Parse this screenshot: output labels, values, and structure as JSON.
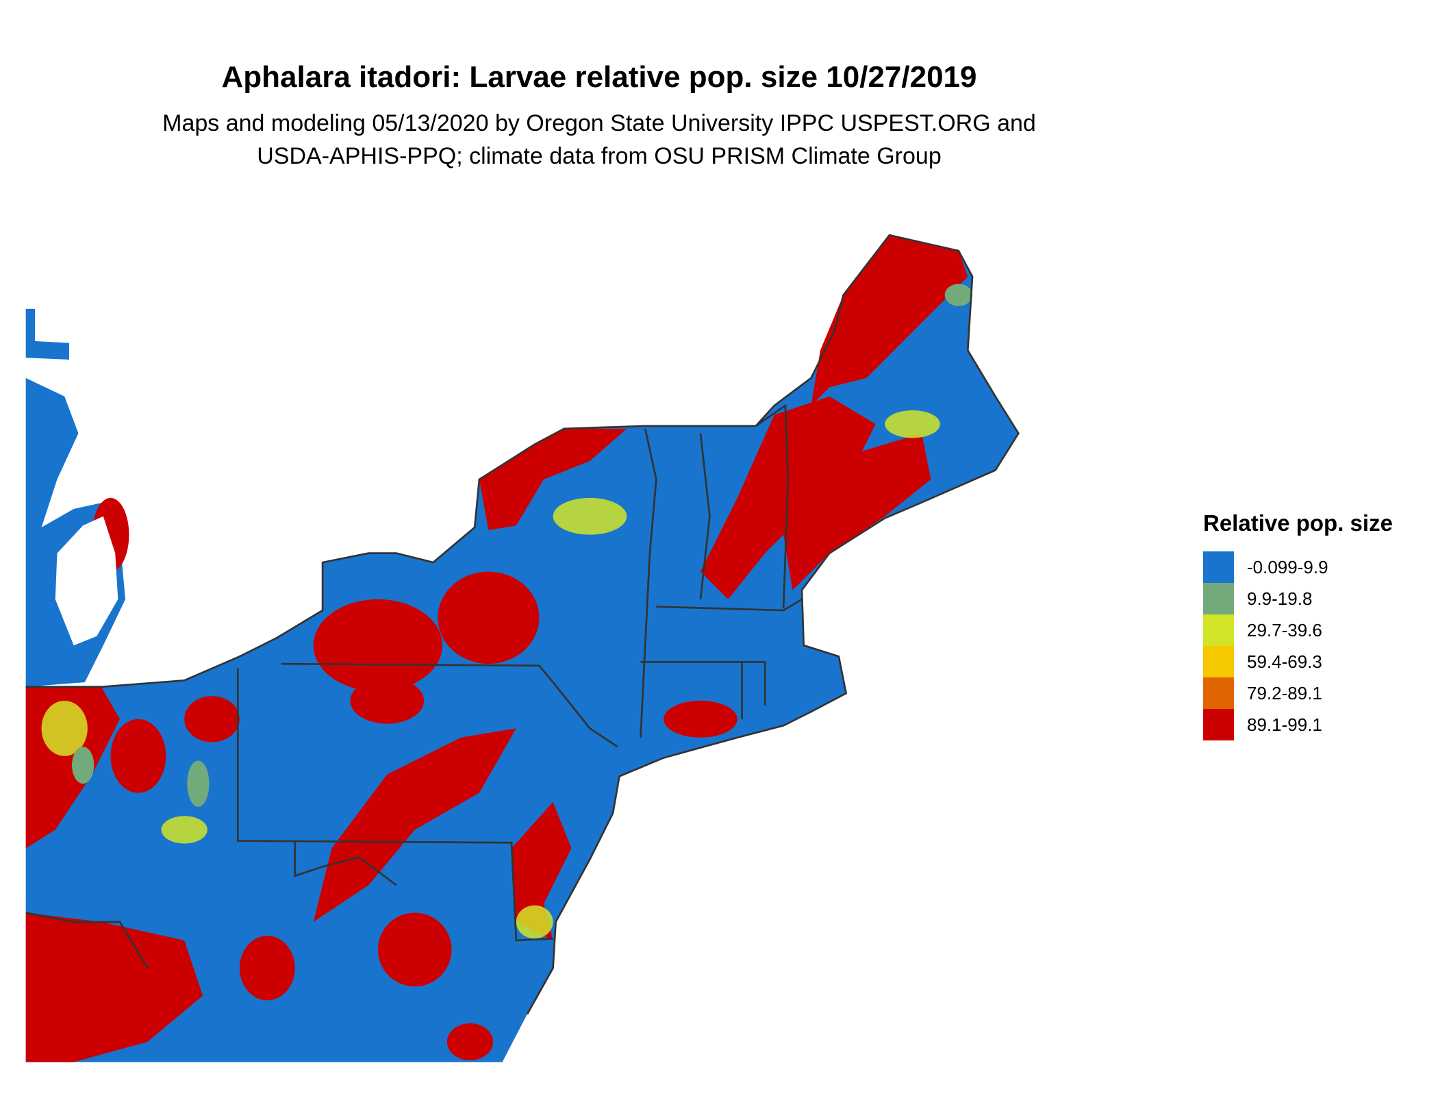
{
  "title": "Aphalara itadori: Larvae relative pop. size 10/27/2019",
  "subtitle_line1": "Maps and modeling 05/13/2020 by Oregon State University IPPC USPEST.ORG and",
  "subtitle_line2": "USDA-APHIS-PPQ; climate data from OSU PRISM Climate Group",
  "legend": {
    "title": "Relative pop. size",
    "items": [
      {
        "label": "-0.099-9.9",
        "color": "#1874cd"
      },
      {
        "label": "9.9-19.8",
        "color": "#72aa7c"
      },
      {
        "label": "29.7-39.6",
        "color": "#d2e428"
      },
      {
        "label": "59.4-69.3",
        "color": "#f5c800"
      },
      {
        "label": "79.2-89.1",
        "color": "#e06400"
      },
      {
        "label": "89.1-99.1",
        "color": "#cc0000"
      }
    ]
  }
}
